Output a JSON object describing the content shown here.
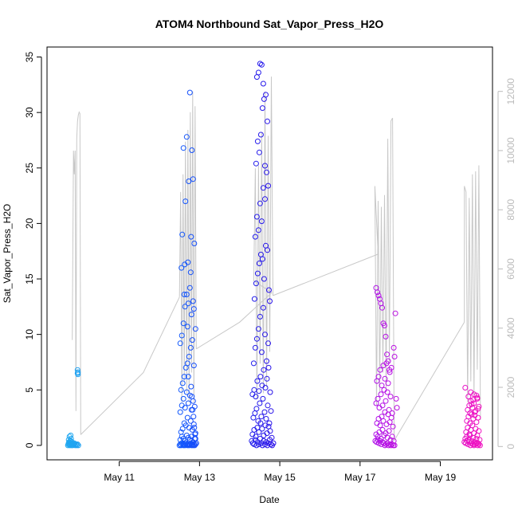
{
  "chart_data": {
    "type": "scatter",
    "title": "ATOM4 Northbound Sat_Vapor_Press_H2O",
    "xlabel": "Date",
    "ylabel": "Sat_Vapor_Press_H2O",
    "x_ticks": [
      "May 11",
      "May 13",
      "May 15",
      "May 17",
      "May 19"
    ],
    "x_tick_days": [
      11,
      13,
      15,
      17,
      19
    ],
    "xlim_days": [
      9.2,
      20.3
    ],
    "ylim": [
      -1.3,
      35.9
    ],
    "y_ticks": [
      0,
      5,
      10,
      15,
      20,
      25,
      30,
      35
    ],
    "y2lim": [
      -450,
      13500
    ],
    "y2_ticks": [
      0,
      2000,
      4000,
      6000,
      8000,
      10000,
      12000
    ],
    "grid": false,
    "colors": {
      "secondary_line": "#c8c8c8",
      "right_axis": "#bbbbbb",
      "point_gradient": [
        "#20a8f0",
        "#1060ff",
        "#2a10e8",
        "#b010e8",
        "#f010c0"
      ]
    },
    "secondary_line_segments": [
      {
        "x": [
          9.83,
          9.86,
          9.88,
          9.9,
          9.92,
          9.94,
          9.96,
          9.98,
          10.0,
          10.02,
          10.04
        ],
        "y2": [
          3600,
          10000,
          9200,
          10000,
          1200,
          10400,
          11000,
          11200,
          11300,
          11250,
          400
        ]
      },
      {
        "x": [
          10.04,
          11.6,
          12.5
        ],
        "y2": [
          400,
          2500,
          5050
        ]
      },
      {
        "x": [
          12.5,
          12.53,
          12.56,
          12.59,
          12.62,
          12.65,
          12.68,
          12.71,
          12.74,
          12.77,
          12.8,
          12.83,
          12.86,
          12.89,
          12.92
        ],
        "y2": [
          5050,
          8600,
          1500,
          9200,
          2200,
          10300,
          1800,
          10700,
          1500,
          11300,
          2500,
          12000,
          1500,
          11500,
          3300
        ]
      },
      {
        "x": [
          12.92,
          14.0,
          14.8
        ],
        "y2": [
          3300,
          4200,
          5200
        ]
      },
      {
        "x": [
          14.8,
          14.35,
          14.39,
          14.43,
          14.47,
          14.51,
          14.55,
          14.59,
          14.63,
          14.67,
          14.71,
          14.75,
          14.79,
          14.83
        ],
        "y2": [
          5200,
          5600,
          9400,
          1600,
          9500,
          2800,
          10600,
          1800,
          12000,
          2000,
          10500,
          3200,
          12500,
          5100
        ]
      },
      {
        "x": [
          14.83,
          17.45
        ],
        "y2": [
          5100,
          6500
        ]
      },
      {
        "x": [
          17.45,
          17.37,
          17.41,
          17.45,
          17.49,
          17.53,
          17.57,
          17.61,
          17.65,
          17.69,
          17.73,
          17.77,
          17.81,
          17.85
        ],
        "y2": [
          6500,
          8800,
          1400,
          8300,
          1800,
          8100,
          2500,
          8500,
          1900,
          10400,
          2800,
          11000,
          11100,
          200
        ]
      },
      {
        "x": [
          17.85,
          19.6
        ],
        "y2": [
          200,
          4200
        ]
      },
      {
        "x": [
          19.6,
          19.6,
          19.64,
          19.68,
          19.72,
          19.76,
          19.8,
          19.84,
          19.88,
          19.92,
          19.96,
          20.0
        ],
        "y2": [
          4200,
          8800,
          8600,
          1500,
          8400,
          2200,
          9200,
          1700,
          9300,
          2600,
          9500,
          900
        ]
      }
    ],
    "series": [
      {
        "x": [
          9.72,
          9.73,
          9.74,
          9.75,
          9.76,
          9.77,
          9.78,
          9.79,
          9.8,
          9.81,
          9.82,
          9.84,
          9.86,
          9.88,
          9.9,
          9.92,
          9.94,
          9.96,
          9.98,
          9.74,
          9.76,
          9.8,
          9.84,
          9.88,
          9.76,
          9.79,
          9.78,
          9.82,
          9.96,
          9.96,
          9.97,
          9.97
        ],
        "y": [
          0.0,
          0.1,
          0.2,
          0.3,
          0.1,
          0.0,
          0.2,
          0.4,
          0.1,
          0.0,
          0.1,
          0.0,
          0.1,
          0.2,
          0.0,
          0.1,
          0.0,
          0.1,
          0.0,
          0.5,
          0.3,
          0.6,
          0.2,
          0.1,
          0.8,
          0.9,
          0.4,
          0.3,
          6.5,
          6.8,
          6.6,
          6.4
        ]
      },
      {
        "x": [
          12.5,
          12.52,
          12.54,
          12.56,
          12.58,
          12.6,
          12.62,
          12.64,
          12.66,
          12.68,
          12.7,
          12.72,
          12.74,
          12.76,
          12.78,
          12.8,
          12.82,
          12.84,
          12.86,
          12.88,
          12.9,
          12.92,
          12.52,
          12.56,
          12.6,
          12.64,
          12.68,
          12.72,
          12.76,
          12.8,
          12.84,
          12.88,
          12.54,
          12.58,
          12.62,
          12.66,
          12.7,
          12.74,
          12.78,
          12.82,
          12.86,
          12.9,
          12.52,
          12.56,
          12.6,
          12.64,
          12.68,
          12.72,
          12.76,
          12.8,
          12.84,
          12.88,
          12.54,
          12.58,
          12.62,
          12.66,
          12.7,
          12.74,
          12.78,
          12.82,
          12.86,
          12.9,
          12.52,
          12.56,
          12.6,
          12.64,
          12.68,
          12.72,
          12.76,
          12.8,
          12.84,
          12.55,
          12.63,
          12.71,
          12.79,
          12.87,
          12.57,
          12.65,
          12.73,
          12.81,
          12.6,
          12.68,
          12.76,
          12.84,
          12.62,
          12.7,
          12.78,
          12.86,
          12.72,
          12.79,
          12.81,
          12.83,
          12.85,
          12.87,
          12.89,
          12.9
        ],
        "y": [
          0.0,
          0.1,
          0.0,
          0.2,
          0.1,
          0.0,
          0.1,
          0.0,
          0.2,
          0.1,
          0.0,
          0.1,
          0.0,
          0.1,
          0.2,
          0.0,
          0.1,
          0.0,
          0.1,
          0.0,
          0.1,
          0.2,
          0.5,
          0.8,
          0.6,
          0.4,
          0.9,
          0.7,
          0.5,
          0.8,
          0.3,
          0.6,
          1.2,
          1.5,
          2.0,
          1.8,
          2.5,
          1.6,
          2.2,
          1.4,
          1.9,
          1.1,
          3.0,
          3.6,
          4.2,
          3.4,
          4.8,
          3.8,
          4.5,
          3.2,
          4.0,
          3.5,
          5.0,
          5.6,
          6.2,
          7.0,
          7.4,
          8.0,
          8.8,
          9.5,
          7.2,
          10.5,
          9.2,
          9.9,
          11.0,
          12.5,
          13.6,
          12.8,
          14.2,
          11.8,
          13.0,
          16.0,
          16.3,
          16.5,
          18.8,
          18.2,
          19.0,
          22.0,
          23.8,
          26.6,
          26.8,
          27.8,
          31.8,
          24.0,
          13.6,
          10.7,
          15.6,
          12.3,
          6.2,
          5.3,
          4.4,
          3.2,
          2.6,
          1.6,
          1.0,
          0.6
        ]
      },
      {
        "x": [
          14.3,
          14.33,
          14.36,
          14.39,
          14.42,
          14.45,
          14.48,
          14.51,
          14.54,
          14.57,
          14.6,
          14.63,
          14.66,
          14.69,
          14.72,
          14.75,
          14.78,
          14.81,
          14.84,
          14.32,
          14.36,
          14.4,
          14.44,
          14.48,
          14.52,
          14.56,
          14.6,
          14.64,
          14.68,
          14.72,
          14.76,
          14.8,
          14.34,
          14.38,
          14.42,
          14.46,
          14.5,
          14.54,
          14.58,
          14.62,
          14.66,
          14.7,
          14.74,
          14.78,
          14.32,
          14.36,
          14.4,
          14.44,
          14.48,
          14.52,
          14.56,
          14.6,
          14.64,
          14.68,
          14.72,
          14.76,
          14.35,
          14.39,
          14.43,
          14.47,
          14.51,
          14.55,
          14.59,
          14.63,
          14.67,
          14.71,
          14.75,
          14.37,
          14.41,
          14.45,
          14.49,
          14.53,
          14.57,
          14.61,
          14.65,
          14.69,
          14.73,
          14.39,
          14.43,
          14.47,
          14.51,
          14.55,
          14.59,
          14.63,
          14.67,
          14.71,
          14.41,
          14.45,
          14.49,
          14.53,
          14.57,
          14.61,
          14.65,
          14.69,
          14.43,
          14.47,
          14.51,
          14.55,
          14.59,
          14.63
        ],
        "y": [
          0.4,
          0.2,
          0.1,
          0.5,
          0.0,
          0.3,
          0.1,
          0.6,
          0.2,
          0.0,
          0.4,
          0.1,
          0.3,
          0.0,
          0.2,
          0.5,
          0.1,
          0.0,
          0.2,
          1.0,
          1.4,
          0.8,
          1.6,
          1.2,
          2.0,
          1.5,
          0.9,
          1.8,
          1.1,
          1.7,
          1.3,
          0.7,
          2.5,
          2.9,
          3.3,
          2.2,
          3.8,
          2.6,
          4.2,
          3.0,
          2.4,
          3.6,
          2.0,
          3.1,
          4.6,
          5.0,
          4.4,
          5.8,
          4.9,
          6.2,
          5.4,
          6.8,
          5.2,
          6.0,
          7.0,
          4.8,
          7.4,
          8.8,
          9.6,
          10.5,
          11.6,
          8.4,
          12.4,
          10.0,
          7.6,
          9.2,
          13.0,
          13.2,
          14.6,
          15.5,
          16.4,
          17.2,
          16.8,
          15.0,
          18.0,
          17.6,
          14.0,
          18.8,
          20.6,
          19.4,
          21.8,
          20.2,
          23.2,
          22.2,
          24.6,
          23.4,
          25.4,
          27.4,
          26.4,
          28.0,
          30.4,
          31.2,
          31.6,
          29.2,
          33.2,
          33.6,
          34.4,
          34.3,
          32.6,
          25.2
        ]
      },
      {
        "x": [
          17.38,
          17.41,
          17.44,
          17.47,
          17.5,
          17.53,
          17.56,
          17.59,
          17.62,
          17.65,
          17.68,
          17.71,
          17.74,
          17.77,
          17.8,
          17.83,
          17.86,
          17.4,
          17.44,
          17.48,
          17.52,
          17.56,
          17.6,
          17.64,
          17.68,
          17.72,
          17.76,
          17.8,
          17.84,
          17.42,
          17.46,
          17.5,
          17.54,
          17.58,
          17.62,
          17.66,
          17.7,
          17.74,
          17.78,
          17.82,
          17.4,
          17.44,
          17.48,
          17.52,
          17.56,
          17.6,
          17.64,
          17.68,
          17.72,
          17.76,
          17.8,
          17.42,
          17.46,
          17.5,
          17.54,
          17.58,
          17.62,
          17.66,
          17.7,
          17.74,
          17.78,
          17.4,
          17.43,
          17.46,
          17.49,
          17.52,
          17.55,
          17.58,
          17.61,
          17.64,
          17.67,
          17.7,
          17.73,
          17.84,
          17.86,
          17.88,
          17.9,
          17.92
        ],
        "y": [
          0.4,
          0.3,
          0.5,
          0.2,
          0.4,
          0.1,
          0.3,
          0.2,
          0.0,
          0.1,
          0.2,
          0.0,
          0.1,
          0.0,
          0.1,
          0.0,
          0.0,
          1.0,
          0.8,
          1.2,
          0.6,
          1.4,
          0.9,
          1.1,
          0.7,
          1.3,
          0.5,
          0.8,
          0.4,
          2.0,
          2.4,
          1.8,
          2.6,
          2.2,
          3.0,
          1.9,
          2.8,
          2.1,
          2.5,
          1.7,
          3.8,
          4.2,
          3.4,
          4.6,
          3.6,
          5.0,
          4.0,
          4.8,
          3.2,
          4.4,
          2.9,
          5.8,
          6.2,
          6.8,
          5.4,
          7.2,
          6.0,
          7.4,
          5.6,
          6.6,
          7.0,
          14.2,
          13.8,
          13.5,
          13.2,
          12.8,
          12.4,
          11.0,
          10.8,
          9.8,
          8.2,
          7.6,
          6.8,
          8.8,
          8.0,
          11.9,
          4.2,
          3.4
        ]
      },
      {
        "x": [
          19.6,
          19.63,
          19.66,
          19.69,
          19.72,
          19.75,
          19.78,
          19.81,
          19.84,
          19.87,
          19.9,
          19.93,
          19.96,
          19.99,
          19.62,
          19.66,
          19.7,
          19.74,
          19.78,
          19.82,
          19.86,
          19.9,
          19.94,
          19.98,
          19.64,
          19.68,
          19.72,
          19.76,
          19.8,
          19.84,
          19.88,
          19.92,
          19.96,
          19.66,
          19.7,
          19.74,
          19.78,
          19.82,
          19.86,
          19.9,
          19.94,
          19.68,
          19.72,
          19.76,
          19.8,
          19.84,
          19.88,
          19.92,
          19.96,
          19.7,
          19.74,
          19.78,
          19.82,
          19.86,
          19.9,
          19.94,
          19.62,
          19.76,
          19.84,
          19.92
        ],
        "y": [
          0.3,
          0.2,
          0.4,
          0.1,
          0.3,
          0.0,
          0.2,
          0.1,
          0.0,
          0.1,
          0.2,
          0.0,
          0.1,
          0.0,
          0.6,
          0.8,
          0.5,
          0.9,
          0.4,
          0.7,
          0.3,
          0.6,
          0.2,
          0.5,
          1.2,
          1.6,
          1.0,
          1.4,
          1.8,
          1.1,
          1.5,
          0.9,
          1.3,
          2.2,
          2.6,
          2.0,
          2.8,
          2.4,
          3.0,
          2.1,
          2.5,
          3.2,
          3.6,
          4.0,
          3.4,
          3.8,
          3.1,
          4.2,
          3.5,
          4.4,
          2.9,
          3.7,
          4.1,
          2.7,
          4.5,
          3.3,
          5.2,
          4.8,
          4.6,
          4.3
        ]
      }
    ]
  }
}
